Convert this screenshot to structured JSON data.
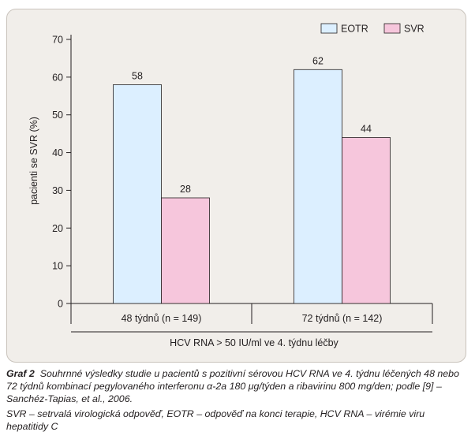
{
  "chart_data": {
    "type": "bar",
    "categories": [
      "48 týdnů (n = 149)",
      "72 týdnů (n = 142)"
    ],
    "series": [
      {
        "name": "EOTR",
        "values": [
          58,
          62
        ],
        "color": "#dcefff"
      },
      {
        "name": "SVR",
        "values": [
          28,
          44
        ],
        "color": "#f6c6dc"
      }
    ],
    "data_labels": [
      [
        "58",
        "62"
      ],
      [
        "28",
        "44"
      ]
    ],
    "ylabel": "pacienti se SVR (%)",
    "xlabel": "HCV RNA > 50 IU/ml ve 4. týdnu léčby",
    "yticks": [
      0,
      10,
      20,
      30,
      40,
      50,
      60,
      70
    ],
    "ylim": [
      0,
      70
    ],
    "legend_position": "top-right",
    "grid": false
  },
  "caption": {
    "lead": "Graf 2",
    "text": "Souhrnné výsledky studie u pacientů s pozitivní sérovou HCV RNA ve 4. týdnu léčených 48 nebo 72 týdnů kombinací pegylovaného interferonu α-2a 180 μg/týden a ribavirinu 800 mg/den; podle [9] – Sanchéz-Tapias, et al., 2006.",
    "note": "SVR – setrvalá virologická odpověď, EOTR – odpověď na konci terapie, HCV RNA – virémie viru hepatitidy C"
  }
}
